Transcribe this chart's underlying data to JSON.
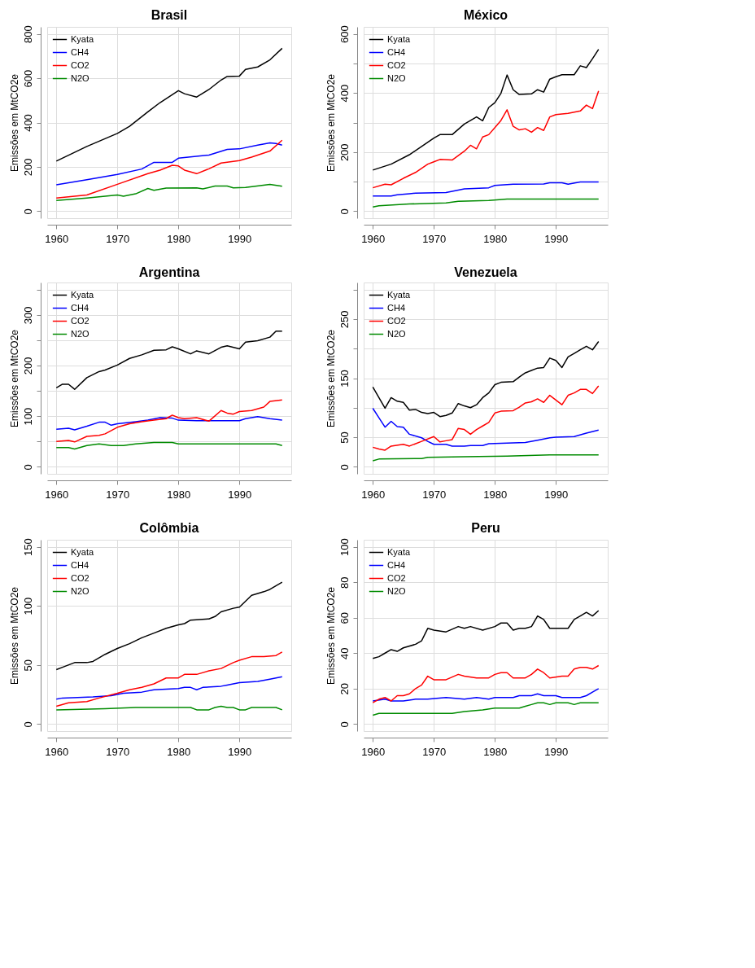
{
  "chart_data": [
    {
      "type": "line",
      "title": "Brasil",
      "ylabel": "Emissões em MtCO2e",
      "xlim": [
        1958.5,
        1998.5
      ],
      "ylim": [
        -32,
        832
      ],
      "xticks": [
        1960,
        1970,
        1980,
        1990
      ],
      "yticks": [
        0,
        200,
        400,
        600,
        800
      ],
      "grid": true,
      "legend": "top left",
      "series": [
        {
          "name": "Kyata",
          "color": "#000000",
          "x": [
            1960,
            1965,
            1970,
            1972,
            1975,
            1977,
            1980,
            1981,
            1983,
            1985,
            1987,
            1988,
            1990,
            1991,
            1993,
            1995,
            1997
          ],
          "values": [
            226,
            292,
            351,
            383,
            448,
            490,
            544,
            530,
            515,
            549,
            592,
            608,
            610,
            640,
            651,
            683,
            735
          ]
        },
        {
          "name": "CH4",
          "color": "#0000ff",
          "x": [
            1960,
            1965,
            1970,
            1974,
            1976,
            1979,
            1980,
            1985,
            1988,
            1990,
            1993,
            1995,
            1996,
            1997
          ],
          "values": [
            119,
            142,
            166,
            190,
            220,
            220,
            239,
            253,
            279,
            281,
            298,
            308,
            305,
            298
          ]
        },
        {
          "name": "CO2",
          "color": "#ff0000",
          "x": [
            1960,
            1965,
            1970,
            1975,
            1977,
            1979,
            1980,
            1981,
            1983,
            1985,
            1987,
            1990,
            1992,
            1995,
            1997
          ],
          "values": [
            59,
            73,
            121,
            169,
            185,
            207,
            204,
            185,
            169,
            191,
            217,
            228,
            244,
            271,
            320
          ]
        },
        {
          "name": "N2O",
          "color": "#008b00",
          "x": [
            1960,
            1965,
            1970,
            1971,
            1973,
            1975,
            1976,
            1978,
            1983,
            1984,
            1986,
            1988,
            1989,
            1991,
            1995,
            1997
          ],
          "values": [
            48,
            59,
            73,
            67,
            78,
            102,
            94,
            104,
            105,
            100,
            113,
            113,
            105,
            107,
            121,
            112
          ]
        }
      ]
    },
    {
      "type": "line",
      "title": "México",
      "ylabel": "Emissões em MtCO2e",
      "xlim": [
        1958.5,
        1998.5
      ],
      "ylim": [
        -24,
        624
      ],
      "xticks": [
        1960,
        1970,
        1980,
        1990
      ],
      "yticks": [
        0,
        {
          "value": 100,
          "label": null
        },
        200,
        {
          "value": 300,
          "label": null
        },
        400,
        {
          "value": 500,
          "label": null
        },
        600
      ],
      "grid": true,
      "legend": "top left",
      "series": [
        {
          "name": "Kyata",
          "color": "#000000",
          "x": [
            1960,
            1963,
            1966,
            1968,
            1970,
            1971,
            1973,
            1975,
            1977,
            1978,
            1979,
            1980,
            1981,
            1982,
            1983,
            1984,
            1986,
            1987,
            1988,
            1989,
            1990,
            1991,
            1993,
            1994,
            1995,
            1996,
            1997
          ],
          "values": [
            139,
            159,
            191,
            219,
            247,
            259,
            259,
            295,
            319,
            306,
            351,
            367,
            399,
            461,
            411,
            395,
            397,
            411,
            403,
            447,
            455,
            462,
            462,
            492,
            486,
            516,
            548
          ]
        },
        {
          "name": "CH4",
          "color": "#0000ff",
          "x": [
            1960,
            1963,
            1964,
            1966,
            1967,
            1972,
            1973,
            1975,
            1979,
            1980,
            1983,
            1988,
            1989,
            1991,
            1992,
            1994,
            1997
          ],
          "values": [
            51,
            51,
            55,
            59,
            61,
            63,
            67,
            75,
            79,
            87,
            91,
            92,
            96,
            96,
            91,
            99,
            99
          ]
        },
        {
          "name": "CO2",
          "color": "#ff0000",
          "x": [
            1960,
            1962,
            1963,
            1965,
            1967,
            1969,
            1970,
            1971,
            1973,
            1975,
            1976,
            1977,
            1978,
            1979,
            1980,
            1981,
            1982,
            1983,
            1984,
            1985,
            1986,
            1987,
            1988,
            1989,
            1990,
            1992,
            1994,
            1995,
            1996,
            1997
          ],
          "values": [
            79,
            91,
            89,
            111,
            131,
            159,
            167,
            175,
            173,
            203,
            223,
            211,
            251,
            259,
            283,
            307,
            343,
            287,
            275,
            279,
            267,
            283,
            273,
            319,
            327,
            331,
            339,
            359,
            347,
            407
          ]
        },
        {
          "name": "N2O",
          "color": "#008b00",
          "x": [
            1960,
            1961,
            1966,
            1972,
            1974,
            1979,
            1982,
            1997
          ],
          "values": [
            14,
            18,
            24,
            28,
            33,
            36,
            41,
            41
          ]
        }
      ]
    },
    {
      "type": "line",
      "title": "Argentina",
      "ylabel": "Emissões em MtCO2e",
      "xlim": [
        1958.5,
        1998.5
      ],
      "ylim": [
        -14,
        364
      ],
      "xticks": [
        1960,
        1970,
        1980,
        1990
      ],
      "yticks": [
        0,
        {
          "value": 50,
          "label": null
        },
        100,
        {
          "value": 150,
          "label": null
        },
        200,
        {
          "value": 250,
          "label": null
        },
        300,
        {
          "value": 350,
          "label": null
        }
      ],
      "grid": true,
      "legend": "top left",
      "series": [
        {
          "name": "Kyata",
          "color": "#000000",
          "x": [
            1960,
            1961,
            1962,
            1963,
            1965,
            1967,
            1968,
            1970,
            1972,
            1974,
            1976,
            1978,
            1979,
            1980,
            1982,
            1983,
            1985,
            1987,
            1988,
            1990,
            1991,
            1993,
            1995,
            1996,
            1997
          ],
          "values": [
            156,
            163,
            163,
            153,
            176,
            188,
            191,
            201,
            214,
            221,
            230,
            231,
            237,
            233,
            223,
            229,
            223,
            236,
            239,
            233,
            246,
            249,
            256,
            268,
            268
          ]
        },
        {
          "name": "CH4",
          "color": "#0000ff",
          "x": [
            1960,
            1962,
            1963,
            1965,
            1967,
            1968,
            1969,
            1970,
            1973,
            1975,
            1977,
            1979,
            1980,
            1983,
            1990,
            1991,
            1993,
            1995,
            1997
          ],
          "values": [
            74,
            76,
            73,
            80,
            88,
            88,
            82,
            85,
            89,
            92,
            97,
            96,
            92,
            91,
            91,
            95,
            99,
            95,
            92
          ]
        },
        {
          "name": "CO2",
          "color": "#ff0000",
          "x": [
            1960,
            1962,
            1963,
            1965,
            1967,
            1968,
            1970,
            1972,
            1974,
            1976,
            1978,
            1979,
            1980,
            1981,
            1983,
            1985,
            1987,
            1988,
            1989,
            1990,
            1992,
            1994,
            1995,
            1997
          ],
          "values": [
            50,
            52,
            49,
            60,
            62,
            65,
            78,
            85,
            89,
            92,
            95,
            102,
            97,
            95,
            97,
            90,
            111,
            106,
            104,
            109,
            111,
            118,
            129,
            132
          ]
        },
        {
          "name": "N2O",
          "color": "#008b00",
          "x": [
            1960,
            1962,
            1963,
            1965,
            1967,
            1969,
            1971,
            1973,
            1976,
            1979,
            1980,
            1996,
            1997
          ],
          "values": [
            38,
            38,
            35,
            42,
            45,
            42,
            42,
            45,
            48,
            48,
            45,
            45,
            42
          ]
        }
      ]
    },
    {
      "type": "line",
      "title": "Venezuela",
      "ylabel": "Emissões em MtCO2e",
      "xlim": [
        1958.5,
        1998.5
      ],
      "ylim": [
        -12,
        312
      ],
      "xticks": [
        1960,
        1970,
        1980,
        1990
      ],
      "yticks": [
        0,
        50,
        {
          "value": 100,
          "label": null
        },
        150,
        {
          "value": 200,
          "label": null
        },
        250,
        {
          "value": 300,
          "label": null
        }
      ],
      "grid": true,
      "legend": "top left",
      "series": [
        {
          "name": "Kyata",
          "color": "#000000",
          "x": [
            1960,
            1962,
            1963,
            1964,
            1965,
            1966,
            1967,
            1968,
            1969,
            1970,
            1971,
            1972,
            1973,
            1974,
            1975,
            1976,
            1977,
            1978,
            1979,
            1980,
            1981,
            1983,
            1984,
            1985,
            1986,
            1987,
            1988,
            1989,
            1990,
            1991,
            1992,
            1993,
            1994,
            1995,
            1996,
            1997
          ],
          "values": [
            135,
            99,
            117,
            111,
            109,
            96,
            97,
            92,
            90,
            92,
            85,
            87,
            91,
            107,
            103,
            100,
            105,
            117,
            125,
            139,
            143,
            144,
            152,
            159,
            163,
            167,
            168,
            184,
            180,
            168,
            186,
            192,
            198,
            204,
            198,
            212
          ]
        },
        {
          "name": "CH4",
          "color": "#0000ff",
          "x": [
            1960,
            1961,
            1962,
            1963,
            1964,
            1965,
            1966,
            1968,
            1969,
            1970,
            1972,
            1973,
            1975,
            1976,
            1978,
            1979,
            1985,
            1987,
            1989,
            1990,
            1993,
            1995,
            1997
          ],
          "values": [
            99,
            83,
            67,
            77,
            68,
            67,
            55,
            49,
            43,
            38,
            38,
            35,
            35,
            36,
            36,
            39,
            41,
            45,
            49,
            50,
            51,
            57,
            62
          ]
        },
        {
          "name": "CO2",
          "color": "#ff0000",
          "x": [
            1960,
            1961,
            1962,
            1963,
            1965,
            1966,
            1968,
            1970,
            1971,
            1972,
            1973,
            1974,
            1975,
            1976,
            1977,
            1978,
            1979,
            1980,
            1981,
            1983,
            1984,
            1985,
            1986,
            1987,
            1988,
            1989,
            1990,
            1991,
            1992,
            1993,
            1994,
            1995,
            1996,
            1997
          ],
          "values": [
            33,
            30,
            28,
            35,
            38,
            35,
            43,
            51,
            42,
            44,
            46,
            65,
            63,
            55,
            63,
            69,
            75,
            91,
            94,
            95,
            101,
            108,
            110,
            115,
            109,
            121,
            113,
            105,
            121,
            125,
            131,
            131,
            124,
            137
          ]
        },
        {
          "name": "N2O",
          "color": "#008b00",
          "x": [
            1960,
            1961,
            1968,
            1969,
            1975,
            1982,
            1989,
            1997
          ],
          "values": [
            10,
            13,
            14,
            16,
            17,
            18,
            20,
            20
          ]
        }
      ]
    },
    {
      "type": "line",
      "title": "Colômbia",
      "ylabel": "Emissões em MtCO2e",
      "xlim": [
        1958.5,
        1998.5
      ],
      "ylim": [
        -6,
        156
      ],
      "xticks": [
        1960,
        1970,
        1980,
        1990
      ],
      "yticks": [
        0,
        50,
        100,
        150
      ],
      "grid": true,
      "legend": "top left",
      "series": [
        {
          "name": "Kyata",
          "color": "#000000",
          "x": [
            1960,
            1961,
            1963,
            1965,
            1966,
            1968,
            1970,
            1972,
            1974,
            1976,
            1978,
            1980,
            1981,
            1982,
            1985,
            1986,
            1987,
            1989,
            1990,
            1991,
            1992,
            1994,
            1995,
            1997
          ],
          "values": [
            46,
            48,
            52,
            52,
            53,
            59,
            64,
            68,
            73,
            77,
            81,
            84,
            85,
            88,
            89,
            91,
            95,
            98,
            99,
            104,
            109,
            112,
            114,
            120
          ]
        },
        {
          "name": "CH4",
          "color": "#0000ff",
          "x": [
            1960,
            1961,
            1966,
            1969,
            1971,
            1974,
            1976,
            1980,
            1981,
            1982,
            1983,
            1984,
            1987,
            1988,
            1990,
            1993,
            1995,
            1997
          ],
          "values": [
            21,
            22,
            23,
            24,
            26,
            27,
            29,
            30,
            31,
            31,
            29,
            31,
            32,
            33,
            35,
            36,
            38,
            40
          ]
        },
        {
          "name": "CO2",
          "color": "#ff0000",
          "x": [
            1960,
            1962,
            1965,
            1967,
            1970,
            1972,
            1974,
            1976,
            1978,
            1980,
            1981,
            1983,
            1985,
            1987,
            1989,
            1990,
            1992,
            1994,
            1996,
            1997
          ],
          "values": [
            15,
            18,
            19,
            22,
            26,
            29,
            31,
            34,
            39,
            39,
            42,
            42,
            45,
            47,
            52,
            54,
            57,
            57,
            58,
            61
          ]
        },
        {
          "name": "N2O",
          "color": "#008b00",
          "x": [
            1960,
            1968,
            1973,
            1982,
            1983,
            1985,
            1986,
            1987,
            1988,
            1989,
            1990,
            1991,
            1992,
            1996,
            1997
          ],
          "values": [
            12,
            13,
            14,
            14,
            12,
            12,
            14,
            15,
            14,
            14,
            12,
            12,
            14,
            14,
            12
          ]
        }
      ]
    },
    {
      "type": "line",
      "title": "Peru",
      "ylabel": "Emissões em MtCO2e",
      "xlim": [
        1958.5,
        1998.5
      ],
      "ylim": [
        -4,
        104
      ],
      "xticks": [
        1960,
        1970,
        1980,
        1990
      ],
      "yticks": [
        0,
        20,
        40,
        60,
        80,
        100
      ],
      "grid": true,
      "legend": "top left",
      "series": [
        {
          "name": "Kyata",
          "color": "#000000",
          "x": [
            1960,
            1961,
            1962,
            1963,
            1964,
            1965,
            1967,
            1968,
            1969,
            1970,
            1972,
            1974,
            1975,
            1976,
            1978,
            1980,
            1981,
            1982,
            1983,
            1984,
            1985,
            1986,
            1987,
            1988,
            1989,
            1990,
            1991,
            1992,
            1993,
            1994,
            1995,
            1996,
            1997
          ],
          "values": [
            37,
            38,
            40,
            42,
            41,
            43,
            45,
            47,
            54,
            53,
            52,
            55,
            54,
            55,
            53,
            55,
            57,
            57,
            53,
            54,
            54,
            55,
            61,
            59,
            54,
            54,
            54,
            54,
            59,
            61,
            63,
            61,
            64
          ]
        },
        {
          "name": "CH4",
          "color": "#0000ff",
          "x": [
            1960,
            1962,
            1963,
            1965,
            1967,
            1969,
            1972,
            1975,
            1977,
            1979,
            1980,
            1983,
            1984,
            1986,
            1987,
            1988,
            1990,
            1991,
            1994,
            1995,
            1996,
            1997
          ],
          "values": [
            13,
            14,
            13,
            13,
            14,
            14,
            15,
            14,
            15,
            14,
            15,
            15,
            16,
            16,
            17,
            16,
            16,
            15,
            15,
            16,
            18,
            20
          ]
        },
        {
          "name": "CO2",
          "color": "#ff0000",
          "x": [
            1960,
            1961,
            1962,
            1963,
            1964,
            1965,
            1966,
            1967,
            1968,
            1969,
            1970,
            1972,
            1974,
            1975,
            1977,
            1979,
            1980,
            1981,
            1982,
            1983,
            1984,
            1985,
            1986,
            1987,
            1988,
            1989,
            1991,
            1992,
            1993,
            1994,
            1995,
            1996,
            1997
          ],
          "values": [
            12,
            14,
            15,
            13,
            16,
            16,
            17,
            20,
            22,
            27,
            25,
            25,
            28,
            27,
            26,
            26,
            28,
            29,
            29,
            26,
            26,
            26,
            28,
            31,
            29,
            26,
            27,
            27,
            31,
            32,
            32,
            31,
            33
          ]
        },
        {
          "name": "N2O",
          "color": "#008b00",
          "x": [
            1960,
            1961,
            1966,
            1967,
            1973,
            1975,
            1978,
            1980,
            1984,
            1985,
            1986,
            1987,
            1988,
            1989,
            1990,
            1992,
            1993,
            1994,
            1997
          ],
          "values": [
            5,
            6,
            6,
            6,
            6,
            7,
            8,
            9,
            9,
            10,
            11,
            12,
            12,
            11,
            12,
            12,
            11,
            12,
            12
          ]
        }
      ]
    }
  ]
}
